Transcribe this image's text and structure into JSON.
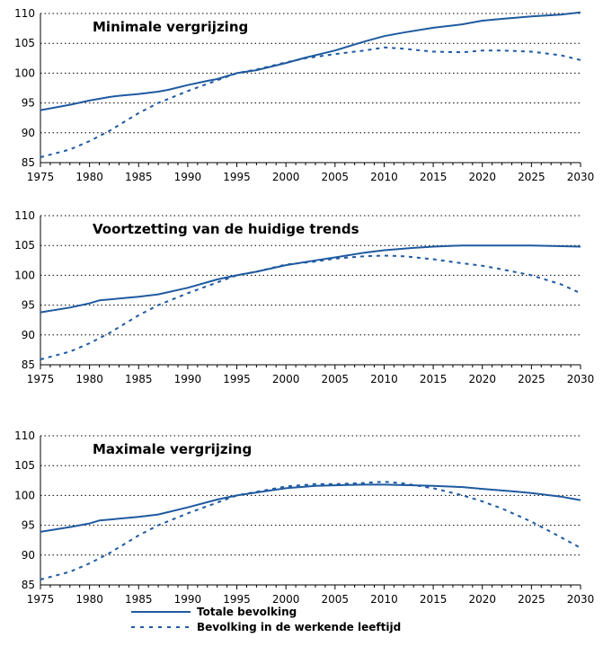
{
  "colors": {
    "line": "#1f5aa0",
    "grid": "#000000",
    "axis": "#000000"
  },
  "legend": {
    "items": [
      {
        "label": "Totale bevolking",
        "style": "solid"
      },
      {
        "label": "Bevolking in de werkende leeftijd",
        "style": "dashed"
      }
    ],
    "placement": "bottom"
  },
  "chart_data": [
    {
      "type": "line",
      "title": "Minimale vergrijzing",
      "xlabel": "",
      "ylabel": "",
      "xlim": [
        1975,
        2030
      ],
      "ylim": [
        85,
        110
      ],
      "x_ticks": [
        1975,
        1980,
        1985,
        1990,
        1995,
        2000,
        2005,
        2010,
        2015,
        2020,
        2025,
        2030
      ],
      "y_ticks": [
        85,
        90,
        95,
        100,
        105,
        110
      ],
      "grid": "horizontal dotted",
      "series": [
        {
          "name": "Totale bevolking",
          "style": "solid",
          "x": [
            1975,
            1978,
            1980,
            1982,
            1983,
            1985,
            1987,
            1988,
            1990,
            1992,
            1993,
            1995,
            1997,
            2000,
            2002,
            2005,
            2008,
            2010,
            2012,
            2015,
            2018,
            2020,
            2022,
            2025,
            2028,
            2030
          ],
          "y": [
            93.8,
            94.7,
            95.4,
            96.0,
            96.2,
            96.5,
            96.9,
            97.2,
            98.0,
            98.7,
            99.0,
            100.0,
            100.5,
            101.7,
            102.6,
            103.8,
            105.3,
            106.2,
            106.8,
            107.6,
            108.2,
            108.8,
            109.1,
            109.5,
            109.8,
            110.2
          ]
        },
        {
          "name": "Bevolking in de werkende leeftijd",
          "style": "dashed",
          "x": [
            1975,
            1978,
            1980,
            1982,
            1985,
            1987,
            1990,
            1993,
            1995,
            1997,
            2000,
            2002,
            2005,
            2008,
            2010,
            2012,
            2015,
            2018,
            2020,
            2022,
            2025,
            2028,
            2030
          ],
          "y": [
            85.9,
            87.2,
            88.6,
            90.3,
            93.3,
            95.0,
            97.0,
            98.8,
            100.0,
            100.6,
            101.8,
            102.5,
            103.2,
            103.8,
            104.3,
            104.1,
            103.6,
            103.5,
            103.8,
            103.8,
            103.6,
            103.0,
            102.2
          ]
        }
      ]
    },
    {
      "type": "line",
      "title": "Voortzetting van de huidige trends",
      "xlabel": "",
      "ylabel": "",
      "xlim": [
        1975,
        2030
      ],
      "ylim": [
        85,
        110
      ],
      "x_ticks": [
        1975,
        1980,
        1985,
        1990,
        1995,
        2000,
        2005,
        2010,
        2015,
        2020,
        2025,
        2030
      ],
      "y_ticks": [
        85,
        90,
        95,
        100,
        105,
        110
      ],
      "grid": "horizontal dotted",
      "series": [
        {
          "name": "Totale bevolking",
          "style": "solid",
          "x": [
            1975,
            1978,
            1980,
            1981,
            1985,
            1987,
            1990,
            1993,
            1995,
            1997,
            2000,
            2003,
            2005,
            2008,
            2010,
            2013,
            2015,
            2018,
            2020,
            2025,
            2030
          ],
          "y": [
            93.8,
            94.6,
            95.3,
            95.8,
            96.4,
            96.8,
            97.9,
            99.3,
            100.0,
            100.6,
            101.7,
            102.5,
            103.0,
            103.8,
            104.2,
            104.6,
            104.8,
            105.0,
            105.0,
            105.0,
            104.8
          ]
        },
        {
          "name": "Bevolking in de werkende leeftijd",
          "style": "dashed",
          "x": [
            1975,
            1978,
            1980,
            1982,
            1985,
            1987,
            1990,
            1993,
            1995,
            1997,
            2000,
            2003,
            2005,
            2008,
            2010,
            2012,
            2015,
            2018,
            2020,
            2022,
            2025,
            2028,
            2030
          ],
          "y": [
            85.9,
            87.2,
            88.6,
            90.3,
            93.3,
            95.0,
            97.0,
            98.8,
            100.0,
            100.6,
            101.8,
            102.3,
            102.8,
            103.2,
            103.3,
            103.2,
            102.7,
            102.0,
            101.6,
            101.0,
            100.0,
            98.5,
            97.0
          ]
        }
      ]
    },
    {
      "type": "line",
      "title": "Maximale vergrijzing",
      "xlabel": "",
      "ylabel": "",
      "xlim": [
        1975,
        2030
      ],
      "ylim": [
        85,
        110
      ],
      "x_ticks": [
        1975,
        1980,
        1985,
        1990,
        1995,
        2000,
        2005,
        2010,
        2015,
        2020,
        2025,
        2030
      ],
      "y_ticks": [
        85,
        90,
        95,
        100,
        105,
        110
      ],
      "grid": "horizontal dotted",
      "series": [
        {
          "name": "Totale bevolking",
          "style": "solid",
          "x": [
            1975,
            1978,
            1980,
            1981,
            1985,
            1987,
            1990,
            1993,
            1995,
            1997,
            2000,
            2003,
            2005,
            2008,
            2010,
            2013,
            2015,
            2018,
            2020,
            2023,
            2025,
            2028,
            2030
          ],
          "y": [
            93.9,
            94.7,
            95.3,
            95.8,
            96.4,
            96.8,
            98.0,
            99.3,
            100.0,
            100.5,
            101.2,
            101.6,
            101.7,
            101.8,
            101.8,
            101.7,
            101.6,
            101.4,
            101.1,
            100.7,
            100.4,
            99.8,
            99.2
          ]
        },
        {
          "name": "Bevolking in de werkende leeftijd",
          "style": "dashed",
          "x": [
            1975,
            1978,
            1980,
            1982,
            1985,
            1987,
            1990,
            1993,
            1995,
            1997,
            2000,
            2003,
            2005,
            2008,
            2010,
            2012,
            2015,
            2018,
            2020,
            2022,
            2025,
            2028,
            2030
          ],
          "y": [
            85.9,
            87.2,
            88.6,
            90.3,
            93.3,
            95.0,
            97.0,
            98.8,
            100.0,
            100.6,
            101.5,
            101.9,
            101.9,
            102.1,
            102.3,
            102.0,
            101.2,
            100.0,
            99.0,
            97.8,
            95.6,
            93.0,
            91.2
          ]
        }
      ]
    }
  ]
}
